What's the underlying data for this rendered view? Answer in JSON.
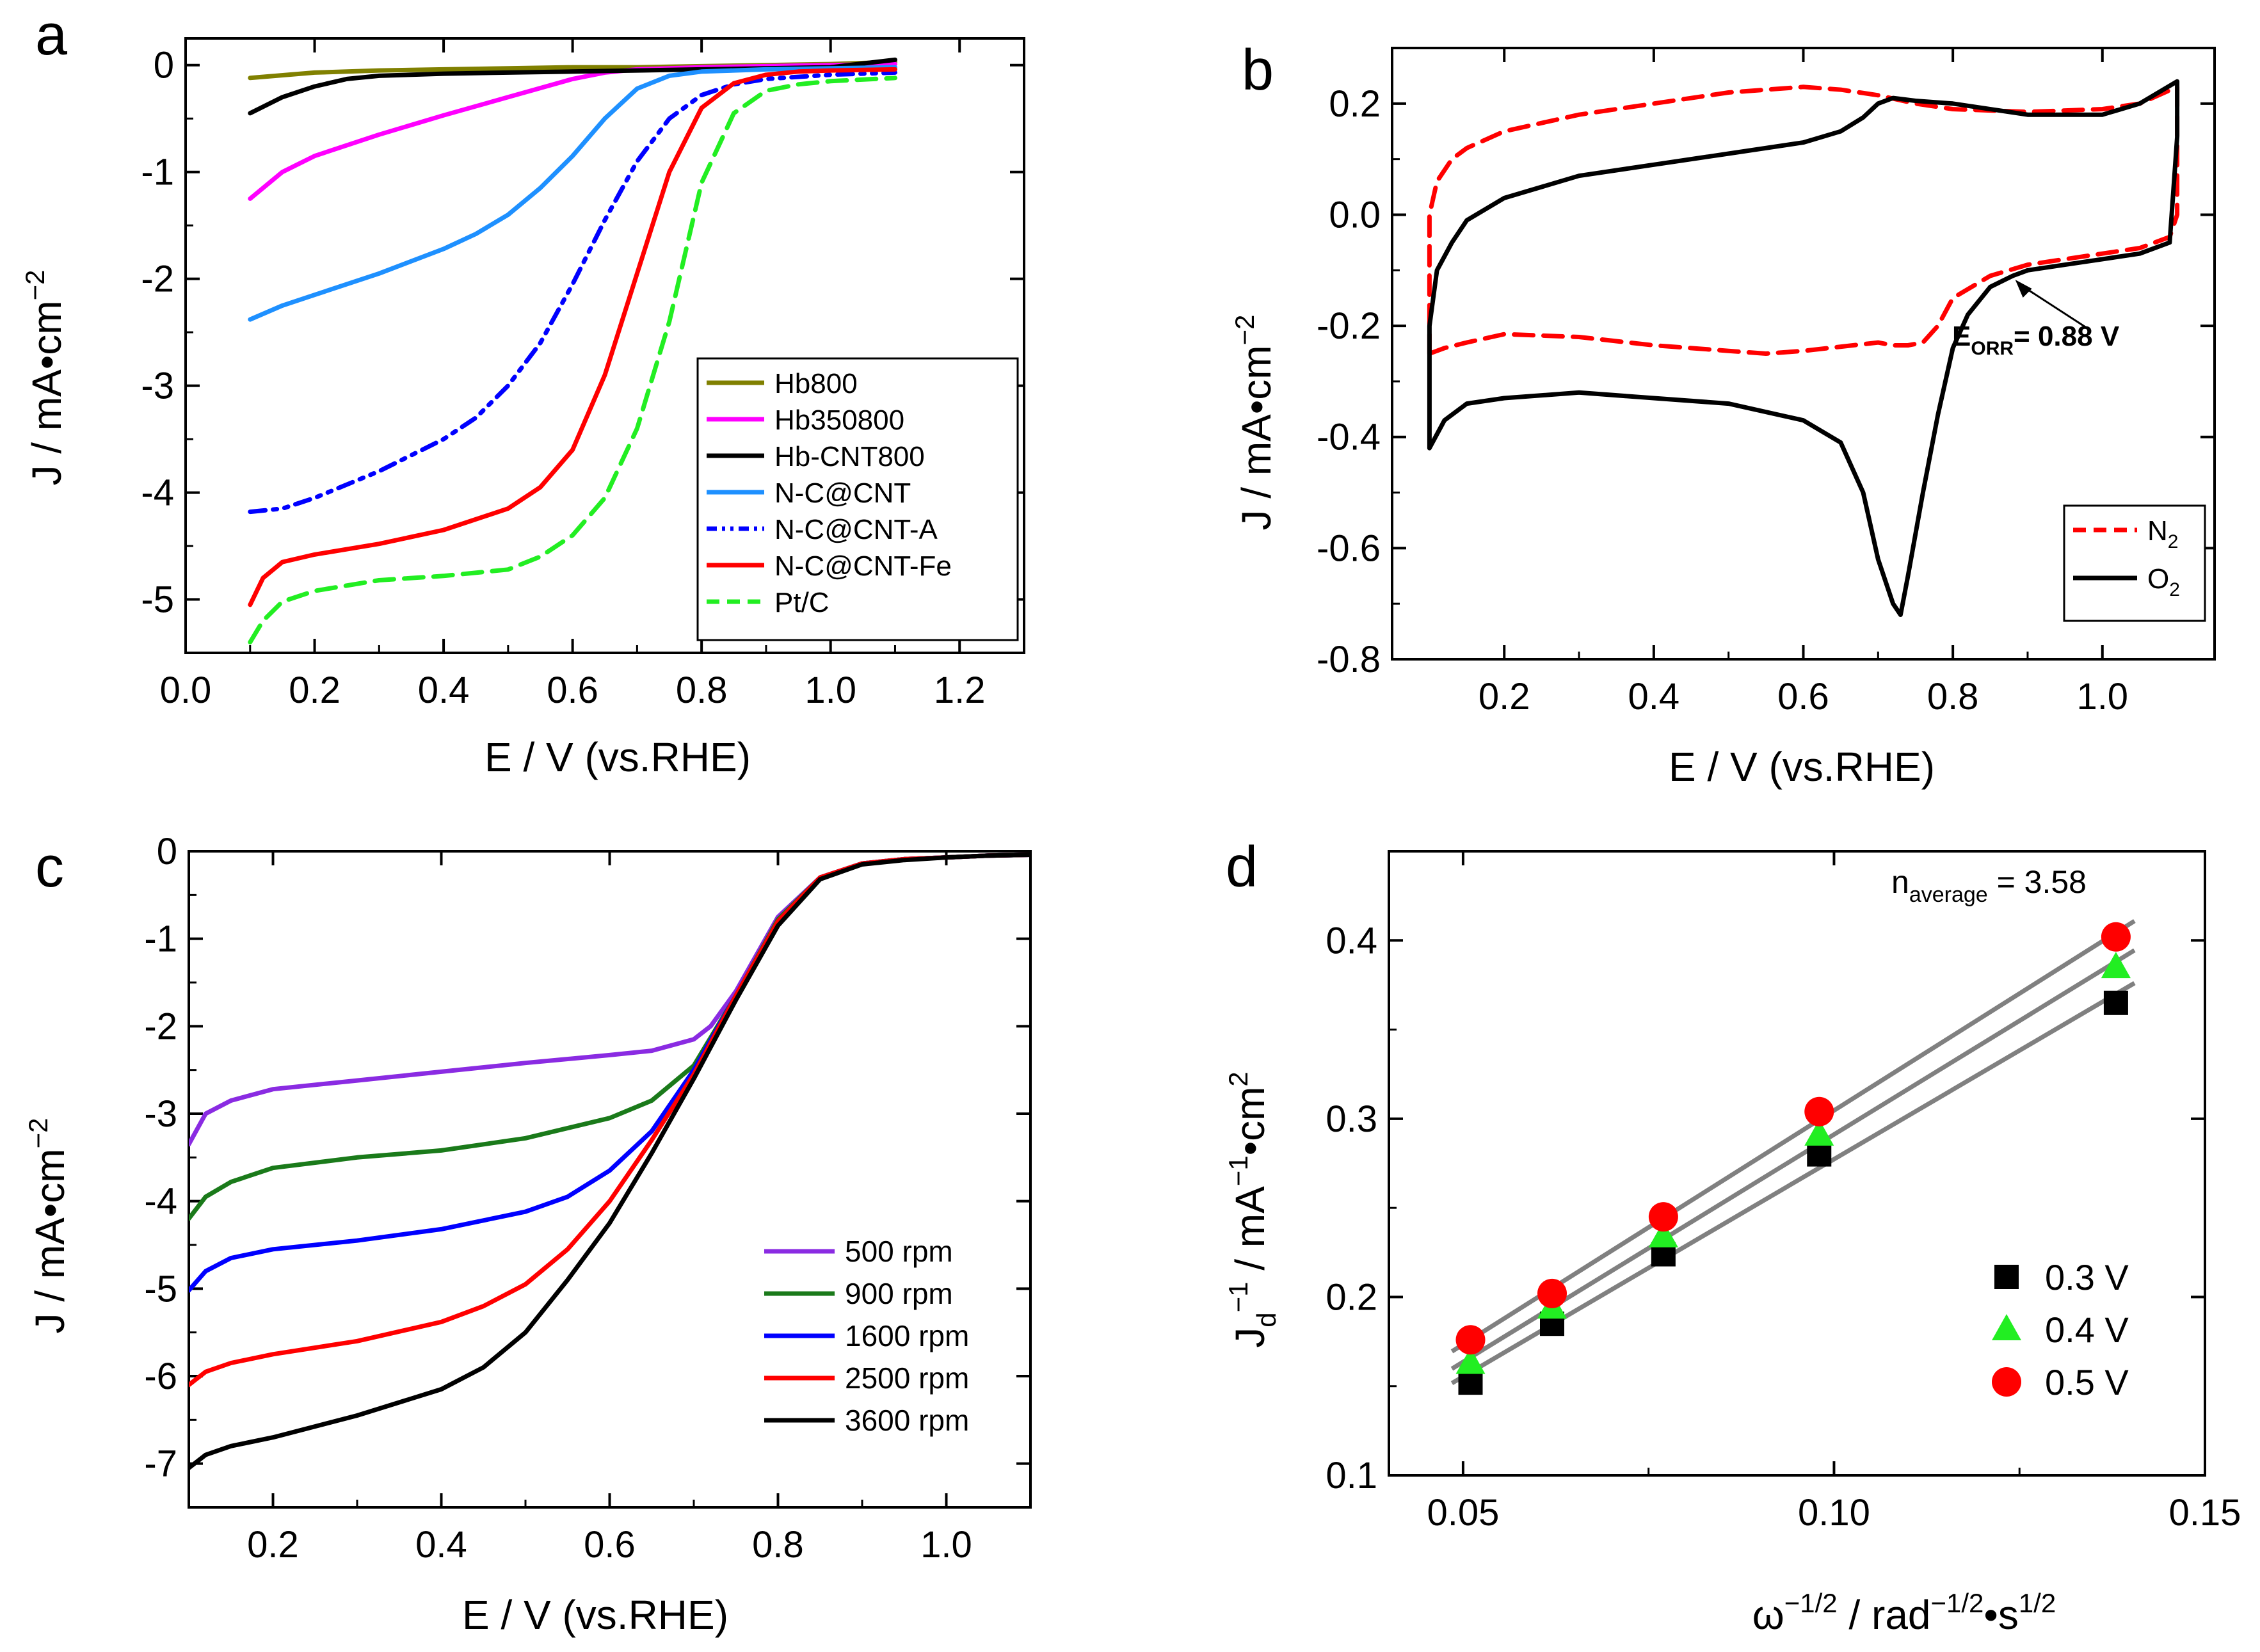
{
  "chart_data": [
    {
      "panel": "a",
      "type": "line",
      "xlabel": "E / V (vs.RHE)",
      "ylabel": "J / mA•cm",
      "ylabel_sup": "−2",
      "xlim": [
        0.0,
        1.3
      ],
      "ylim": [
        -5.5,
        0.25
      ],
      "xticks": [
        0.0,
        0.2,
        0.4,
        0.6,
        0.8,
        1.0,
        1.2
      ],
      "xtick_labels": [
        "0.0",
        "0.2",
        "0.4",
        "0.6",
        "0.8",
        "1.0",
        "1.2"
      ],
      "yticks": [
        0,
        -1,
        -2,
        -3,
        -4,
        -5
      ],
      "ytick_labels": [
        "0",
        "-1",
        "-2",
        "-3",
        "-4",
        "-5"
      ],
      "series": [
        {
          "name": "Hb800",
          "color": "#808000",
          "dash": "solid",
          "x": [
            0.1,
            0.2,
            0.3,
            0.4,
            0.5,
            0.6,
            0.7,
            0.8,
            0.9,
            1.0,
            1.1
          ],
          "y": [
            -0.12,
            -0.07,
            -0.05,
            -0.04,
            -0.03,
            -0.02,
            -0.02,
            -0.01,
            0.0,
            0.01,
            0.03
          ]
        },
        {
          "name": "Hb350800",
          "color": "#ff00ff",
          "dash": "solid",
          "x": [
            0.1,
            0.15,
            0.2,
            0.3,
            0.4,
            0.5,
            0.6,
            0.65,
            0.7,
            0.8,
            0.9,
            1.0,
            1.1
          ],
          "y": [
            -1.25,
            -1.0,
            -0.85,
            -0.65,
            -0.47,
            -0.3,
            -0.13,
            -0.07,
            -0.04,
            -0.02,
            -0.01,
            0.0,
            0.01
          ]
        },
        {
          "name": "Hb-CNT800",
          "color": "#000000",
          "dash": "solid",
          "x": [
            0.1,
            0.15,
            0.2,
            0.25,
            0.3,
            0.4,
            0.5,
            0.6,
            0.7,
            0.8,
            0.9,
            1.0,
            1.1
          ],
          "y": [
            -0.45,
            -0.3,
            -0.2,
            -0.13,
            -0.1,
            -0.08,
            -0.07,
            -0.06,
            -0.05,
            -0.04,
            -0.03,
            -0.02,
            0.05
          ]
        },
        {
          "name": "N-C@CNT",
          "color": "#1e90ff",
          "dash": "solid",
          "x": [
            0.1,
            0.15,
            0.2,
            0.3,
            0.4,
            0.45,
            0.5,
            0.55,
            0.6,
            0.65,
            0.7,
            0.75,
            0.8,
            0.9,
            1.0,
            1.1
          ],
          "y": [
            -2.38,
            -2.25,
            -2.15,
            -1.95,
            -1.72,
            -1.58,
            -1.4,
            -1.15,
            -0.85,
            -0.5,
            -0.22,
            -0.1,
            -0.06,
            -0.04,
            -0.03,
            -0.02
          ]
        },
        {
          "name": "N-C@CNT-A",
          "color": "#0000ff",
          "dash": "dashdotdot",
          "x": [
            0.1,
            0.15,
            0.2,
            0.3,
            0.4,
            0.45,
            0.5,
            0.55,
            0.6,
            0.65,
            0.7,
            0.75,
            0.8,
            0.85,
            0.9,
            1.0,
            1.1
          ],
          "y": [
            -4.18,
            -4.15,
            -4.05,
            -3.8,
            -3.5,
            -3.3,
            -3.0,
            -2.6,
            -2.05,
            -1.45,
            -0.9,
            -0.5,
            -0.28,
            -0.18,
            -0.13,
            -0.09,
            -0.07
          ]
        },
        {
          "name": "N-C@CNT-Fe",
          "color": "#ff0000",
          "dash": "solid",
          "x": [
            0.1,
            0.12,
            0.15,
            0.2,
            0.3,
            0.4,
            0.5,
            0.55,
            0.6,
            0.65,
            0.7,
            0.75,
            0.8,
            0.85,
            0.9,
            0.95,
            1.0,
            1.1
          ],
          "y": [
            -5.05,
            -4.8,
            -4.65,
            -4.58,
            -4.48,
            -4.35,
            -4.15,
            -3.95,
            -3.6,
            -2.9,
            -1.95,
            -1.0,
            -0.4,
            -0.17,
            -0.09,
            -0.06,
            -0.05,
            -0.04
          ]
        },
        {
          "name": "Pt/C",
          "color": "#22ee22",
          "dash": "dashed",
          "x": [
            0.1,
            0.12,
            0.15,
            0.2,
            0.3,
            0.4,
            0.5,
            0.55,
            0.6,
            0.65,
            0.7,
            0.75,
            0.8,
            0.85,
            0.9,
            0.95,
            1.0,
            1.1
          ],
          "y": [
            -5.4,
            -5.2,
            -5.02,
            -4.92,
            -4.82,
            -4.78,
            -4.72,
            -4.6,
            -4.4,
            -4.05,
            -3.4,
            -2.4,
            -1.1,
            -0.45,
            -0.24,
            -0.18,
            -0.15,
            -0.12
          ]
        }
      ],
      "legend": "bottom-right"
    },
    {
      "panel": "b",
      "type": "line",
      "xlabel": "E / V (vs.RHE)",
      "ylabel": "J / mA•cm",
      "ylabel_sup": "−2",
      "xlim": [
        0.05,
        1.15
      ],
      "ylim": [
        -0.8,
        0.3
      ],
      "xticks": [
        0.2,
        0.4,
        0.6,
        0.8,
        1.0
      ],
      "xtick_labels": [
        "0.2",
        "0.4",
        "0.6",
        "0.8",
        "1.0"
      ],
      "yticks": [
        0.2,
        0.0,
        -0.2,
        -0.4,
        -0.6,
        -0.8
      ],
      "ytick_labels": [
        "0.2",
        "0.0",
        "-0.2",
        "-0.4",
        "-0.6",
        "-0.8"
      ],
      "annotation": {
        "prefix": "E",
        "subscript": "ORR",
        "suffix": "= 0.88 V",
        "x": 0.88,
        "y": -0.11
      },
      "series": [
        {
          "name": "N",
          "name_sub": "2",
          "color": "#ff0000",
          "dash": "dashed",
          "x": [
            0.1,
            0.1,
            0.11,
            0.13,
            0.15,
            0.2,
            0.3,
            0.4,
            0.5,
            0.6,
            0.65,
            0.7,
            0.75,
            0.8,
            0.9,
            1.0,
            1.05,
            1.1,
            1.1,
            1.09,
            1.05,
            1.0,
            0.9,
            0.85,
            0.8,
            0.78,
            0.76,
            0.74,
            0.72,
            0.7,
            0.6,
            0.55,
            0.5,
            0.4,
            0.3,
            0.2,
            0.15,
            0.12,
            0.1
          ],
          "y": [
            -0.25,
            0.0,
            0.06,
            0.1,
            0.12,
            0.15,
            0.18,
            0.2,
            0.22,
            0.23,
            0.225,
            0.215,
            0.2,
            0.19,
            0.185,
            0.19,
            0.2,
            0.23,
            0.0,
            -0.04,
            -0.06,
            -0.07,
            -0.09,
            -0.11,
            -0.15,
            -0.2,
            -0.23,
            -0.235,
            -0.235,
            -0.23,
            -0.245,
            -0.25,
            -0.245,
            -0.235,
            -0.22,
            -0.215,
            -0.23,
            -0.24,
            -0.25
          ]
        },
        {
          "name": "O",
          "name_sub": "2",
          "color": "#000000",
          "dash": "solid",
          "x": [
            0.1,
            0.1,
            0.11,
            0.13,
            0.15,
            0.2,
            0.3,
            0.4,
            0.5,
            0.6,
            0.65,
            0.68,
            0.7,
            0.72,
            0.75,
            0.8,
            0.9,
            1.0,
            1.05,
            1.1,
            1.1,
            1.09,
            1.05,
            1.0,
            0.95,
            0.9,
            0.88,
            0.85,
            0.82,
            0.8,
            0.78,
            0.76,
            0.74,
            0.73,
            0.72,
            0.7,
            0.68,
            0.65,
            0.6,
            0.5,
            0.4,
            0.3,
            0.2,
            0.15,
            0.12,
            0.1
          ],
          "y": [
            -0.42,
            -0.2,
            -0.1,
            -0.05,
            -0.01,
            0.03,
            0.07,
            0.09,
            0.11,
            0.13,
            0.15,
            0.175,
            0.2,
            0.21,
            0.205,
            0.2,
            0.18,
            0.18,
            0.2,
            0.24,
            0.14,
            -0.05,
            -0.07,
            -0.08,
            -0.09,
            -0.1,
            -0.11,
            -0.13,
            -0.18,
            -0.24,
            -0.36,
            -0.5,
            -0.65,
            -0.72,
            -0.7,
            -0.62,
            -0.5,
            -0.41,
            -0.37,
            -0.34,
            -0.33,
            -0.32,
            -0.33,
            -0.34,
            -0.37,
            -0.42
          ]
        }
      ],
      "legend": "bottom-right"
    },
    {
      "panel": "c",
      "type": "line",
      "xlabel": "E  / V (vs.RHE)",
      "ylabel": "J / mA•cm",
      "ylabel_sup": "−2",
      "xlim": [
        0.1,
        1.1
      ],
      "ylim": [
        -7.5,
        0.0
      ],
      "xticks": [
        0.2,
        0.4,
        0.6,
        0.8,
        1.0
      ],
      "xtick_labels": [
        "0.2",
        "0.4",
        "0.6",
        "0.8",
        "1.0"
      ],
      "yticks": [
        0,
        -1,
        -2,
        -3,
        -4,
        -5,
        -6,
        -7
      ],
      "ytick_labels": [
        "0",
        "-1",
        "-2",
        "-3",
        "-4",
        "-5",
        "-6",
        "-7"
      ],
      "series": [
        {
          "name": "500 rpm",
          "color": "#8a2be2",
          "dash": "solid",
          "x": [
            0.1,
            0.12,
            0.15,
            0.2,
            0.3,
            0.4,
            0.5,
            0.6,
            0.65,
            0.7,
            0.72,
            0.75,
            0.8,
            0.85,
            0.9,
            0.95,
            1.0,
            1.05,
            1.1
          ],
          "y": [
            -3.35,
            -3.0,
            -2.85,
            -2.72,
            -2.62,
            -2.52,
            -2.42,
            -2.33,
            -2.28,
            -2.15,
            -2.0,
            -1.6,
            -0.75,
            -0.3,
            -0.14,
            -0.09,
            -0.07,
            -0.05,
            -0.04
          ]
        },
        {
          "name": "900 rpm",
          "color": "#1a7a1a",
          "dash": "solid",
          "x": [
            0.1,
            0.12,
            0.15,
            0.2,
            0.3,
            0.4,
            0.5,
            0.6,
            0.65,
            0.7,
            0.75,
            0.8,
            0.85,
            0.9,
            0.95,
            1.0,
            1.05,
            1.1
          ],
          "y": [
            -4.2,
            -3.95,
            -3.78,
            -3.62,
            -3.5,
            -3.42,
            -3.28,
            -3.05,
            -2.85,
            -2.45,
            -1.65,
            -0.78,
            -0.3,
            -0.14,
            -0.09,
            -0.07,
            -0.05,
            -0.04
          ]
        },
        {
          "name": "1600 rpm",
          "color": "#0000ff",
          "dash": "solid",
          "x": [
            0.1,
            0.12,
            0.15,
            0.2,
            0.3,
            0.4,
            0.5,
            0.55,
            0.6,
            0.65,
            0.7,
            0.75,
            0.8,
            0.85,
            0.9,
            0.95,
            1.0,
            1.05,
            1.1
          ],
          "y": [
            -5.02,
            -4.8,
            -4.65,
            -4.55,
            -4.45,
            -4.32,
            -4.12,
            -3.95,
            -3.65,
            -3.2,
            -2.5,
            -1.65,
            -0.8,
            -0.3,
            -0.14,
            -0.09,
            -0.07,
            -0.05,
            -0.04
          ]
        },
        {
          "name": "2500 rpm",
          "color": "#ff0000",
          "dash": "solid",
          "x": [
            0.1,
            0.12,
            0.15,
            0.2,
            0.3,
            0.4,
            0.45,
            0.5,
            0.55,
            0.6,
            0.65,
            0.7,
            0.75,
            0.8,
            0.85,
            0.9,
            0.95,
            1.0,
            1.05,
            1.1
          ],
          "y": [
            -6.1,
            -5.95,
            -5.85,
            -5.75,
            -5.6,
            -5.38,
            -5.2,
            -4.95,
            -4.55,
            -4.0,
            -3.3,
            -2.55,
            -1.65,
            -0.8,
            -0.3,
            -0.14,
            -0.09,
            -0.07,
            -0.05,
            -0.04
          ]
        },
        {
          "name": "3600 rpm",
          "color": "#000000",
          "dash": "solid",
          "x": [
            0.1,
            0.12,
            0.15,
            0.2,
            0.3,
            0.4,
            0.45,
            0.5,
            0.55,
            0.6,
            0.65,
            0.7,
            0.75,
            0.8,
            0.85,
            0.9,
            0.95,
            1.0,
            1.05,
            1.1
          ],
          "y": [
            -7.05,
            -6.9,
            -6.8,
            -6.7,
            -6.45,
            -6.15,
            -5.9,
            -5.5,
            -4.9,
            -4.25,
            -3.45,
            -2.6,
            -1.7,
            -0.85,
            -0.32,
            -0.15,
            -0.1,
            -0.07,
            -0.05,
            -0.04
          ]
        }
      ],
      "legend": "bottom-right"
    },
    {
      "panel": "d",
      "type": "scatter",
      "xlabel": "ω",
      "xlabel_sup1": "−1/2",
      "xlabel_mid": " / rad",
      "xlabel_sup2": "−1/2",
      "xlabel_end": "•s",
      "xlabel_sup3": "1/2",
      "ylabel_main": "J",
      "ylabel_sub": "d",
      "ylabel_sup1": "−1",
      "ylabel_mid": " / mA",
      "ylabel_sup2": "−1",
      "ylabel_end": "•cm",
      "ylabel_sup3": "2",
      "xlim": [
        0.04,
        0.15
      ],
      "ylim": [
        0.1,
        0.45
      ],
      "xticks": [
        0.05,
        0.1,
        0.15
      ],
      "xtick_labels": [
        "0.05",
        "0.10",
        "0.15"
      ],
      "yticks": [
        0.1,
        0.2,
        0.3,
        0.4
      ],
      "ytick_labels": [
        "0.1",
        "0.2",
        "0.3",
        "0.4"
      ],
      "annotation": {
        "prefix": "n",
        "subscript": "average",
        "suffix": " = 3.58"
      },
      "fit_line_color": "#808080",
      "series": [
        {
          "name": "0.3 V",
          "marker": "square",
          "color": "#000000",
          "x": [
            0.051,
            0.062,
            0.077,
            0.098,
            0.138
          ],
          "y": [
            0.152,
            0.185,
            0.224,
            0.28,
            0.365
          ]
        },
        {
          "name": "0.4 V",
          "marker": "triangle",
          "color": "#22ee22",
          "x": [
            0.051,
            0.062,
            0.077,
            0.098,
            0.138
          ],
          "y": [
            0.163,
            0.194,
            0.234,
            0.291,
            0.385
          ]
        },
        {
          "name": "0.5 V",
          "marker": "circle",
          "color": "#ff0000",
          "x": [
            0.051,
            0.062,
            0.077,
            0.098,
            0.138
          ],
          "y": [
            0.176,
            0.202,
            0.245,
            0.304,
            0.402
          ]
        }
      ],
      "legend": "bottom-right"
    }
  ]
}
